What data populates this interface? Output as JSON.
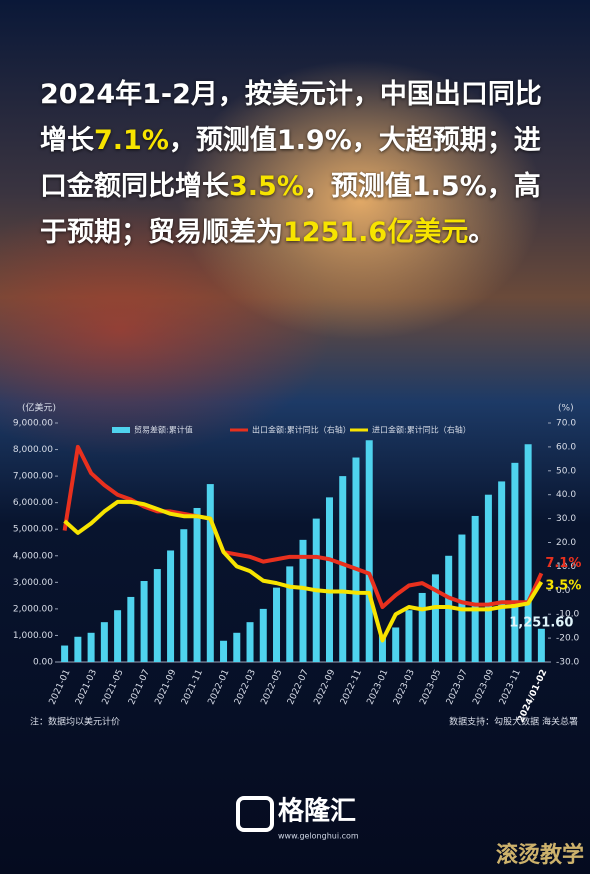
{
  "headline": [
    "2024年1-2月，按美元计，中国出口同比增长",
    "7.1%",
    "，预测值1.9%，大超预期；进口金额同比增长",
    "3.5%",
    "，预测值1.5%，高于预期；贸易顺差为",
    "1251.6亿美元",
    "。"
  ],
  "chart_data": {
    "type": "bar-line",
    "y_unit": "(亿美元)",
    "y2_unit": "(%)",
    "categories": [
      "2021-01",
      null,
      "2021-03",
      null,
      "2021-05",
      null,
      "2021-07",
      null,
      "2021-09",
      null,
      "2021-11",
      null,
      "2022-01",
      null,
      "2022-03",
      null,
      "2022-05",
      null,
      "2022-07",
      null,
      "2022-09",
      null,
      "2022-11",
      null,
      "2023-01",
      null,
      "2023-03",
      null,
      "2023-05",
      null,
      "2023-07",
      null,
      "2023-09",
      null,
      "2023-11",
      null,
      "2024/01-02"
    ],
    "series": [
      {
        "name": "贸易差额:累计值",
        "color": "#4fd3ee",
        "kind": "bar",
        "values": [
          620,
          950,
          1100,
          1500,
          1950,
          2450,
          3050,
          3500,
          4200,
          5000,
          5800,
          6700,
          800,
          1100,
          1500,
          2000,
          2800,
          3600,
          4600,
          5400,
          6200,
          7000,
          7700,
          8350,
          1000,
          1300,
          1950,
          2600,
          3300,
          4000,
          4800,
          5500,
          6300,
          6800,
          7500,
          8200,
          1251.6
        ],
        "value_labels": [
          null,
          null,
          null,
          null,
          null,
          null,
          null,
          null,
          null,
          null,
          null,
          null,
          null,
          null,
          null,
          null,
          null,
          null,
          null,
          null,
          null,
          null,
          null,
          null,
          null,
          null,
          null,
          null,
          null,
          null,
          null,
          null,
          null,
          null,
          null,
          null,
          "1,251.60"
        ]
      },
      {
        "name": "出口金额:累计同比（右轴）",
        "color": "#e8301e",
        "kind": "line",
        "axis": "y2",
        "values": [
          25,
          60,
          49,
          44,
          40,
          38,
          35,
          33,
          33,
          32,
          31,
          30,
          16,
          15,
          14,
          12,
          13,
          14,
          14,
          14,
          13,
          11,
          9,
          7,
          -7,
          -2,
          2,
          3,
          0,
          -3,
          -5,
          -6,
          -6,
          -5,
          -5,
          -5,
          7.1
        ],
        "value_labels": [
          null,
          null,
          null,
          null,
          null,
          null,
          null,
          null,
          null,
          null,
          null,
          null,
          null,
          null,
          null,
          null,
          null,
          null,
          null,
          null,
          null,
          null,
          null,
          null,
          null,
          null,
          null,
          null,
          null,
          null,
          null,
          null,
          null,
          null,
          null,
          null,
          "7.1%"
        ]
      },
      {
        "name": "进口金额:累计同比（右轴）",
        "color": "#f7e400",
        "kind": "line",
        "axis": "y2",
        "values": [
          29,
          24,
          28,
          33,
          37,
          37,
          36,
          34,
          32,
          31,
          31,
          30,
          16,
          10,
          8,
          4,
          3,
          1.5,
          1,
          0,
          -0.5,
          -0.5,
          -1,
          -1.1,
          -21,
          -10,
          -7,
          -8,
          -7,
          -7,
          -8,
          -8,
          -8,
          -7,
          -6.5,
          -5.5,
          3.5
        ],
        "value_labels": [
          null,
          null,
          null,
          null,
          null,
          null,
          null,
          null,
          null,
          null,
          null,
          null,
          null,
          null,
          null,
          null,
          null,
          null,
          null,
          null,
          null,
          null,
          null,
          null,
          null,
          null,
          null,
          null,
          null,
          null,
          null,
          null,
          null,
          null,
          null,
          null,
          "3.5%"
        ]
      }
    ],
    "ylim": [
      0,
      9000
    ],
    "yticks": [
      {
        "value": 0,
        "label": "0.00"
      },
      {
        "value": 1000,
        "label": "1,000.00"
      },
      {
        "value": 2000,
        "label": "2,000.00"
      },
      {
        "value": 3000,
        "label": "3,000.00"
      },
      {
        "value": 4000,
        "label": "4,000.00"
      },
      {
        "value": 5000,
        "label": "5,000.00"
      },
      {
        "value": 6000,
        "label": "6,000.00"
      },
      {
        "value": 7000,
        "label": "7,000.00"
      },
      {
        "value": 8000,
        "label": "8,000.00"
      },
      {
        "value": 9000,
        "label": "9,000.00"
      }
    ],
    "y2lim": [
      -30,
      70
    ],
    "y2ticks": [
      {
        "value": -30,
        "label": "-30.0"
      },
      {
        "value": -20,
        "label": "-20.0"
      },
      {
        "value": -10,
        "label": "-10.0"
      },
      {
        "value": 0,
        "label": "0.0"
      },
      {
        "value": 10,
        "label": "10.0"
      },
      {
        "value": 20,
        "label": "20.0"
      },
      {
        "value": 30,
        "label": "30.0"
      },
      {
        "value": 40,
        "label": "40.0"
      },
      {
        "value": 50,
        "label": "50.0"
      },
      {
        "value": 60,
        "label": "60.0"
      },
      {
        "value": 70,
        "label": "70.0"
      }
    ],
    "note": "注：数据均以美元计价",
    "source": "数据支持：勾股大数据 海关总署"
  },
  "logo": {
    "name": "格隆汇",
    "url": "www.gelonghui.com"
  },
  "watermark": "滚烫教学"
}
